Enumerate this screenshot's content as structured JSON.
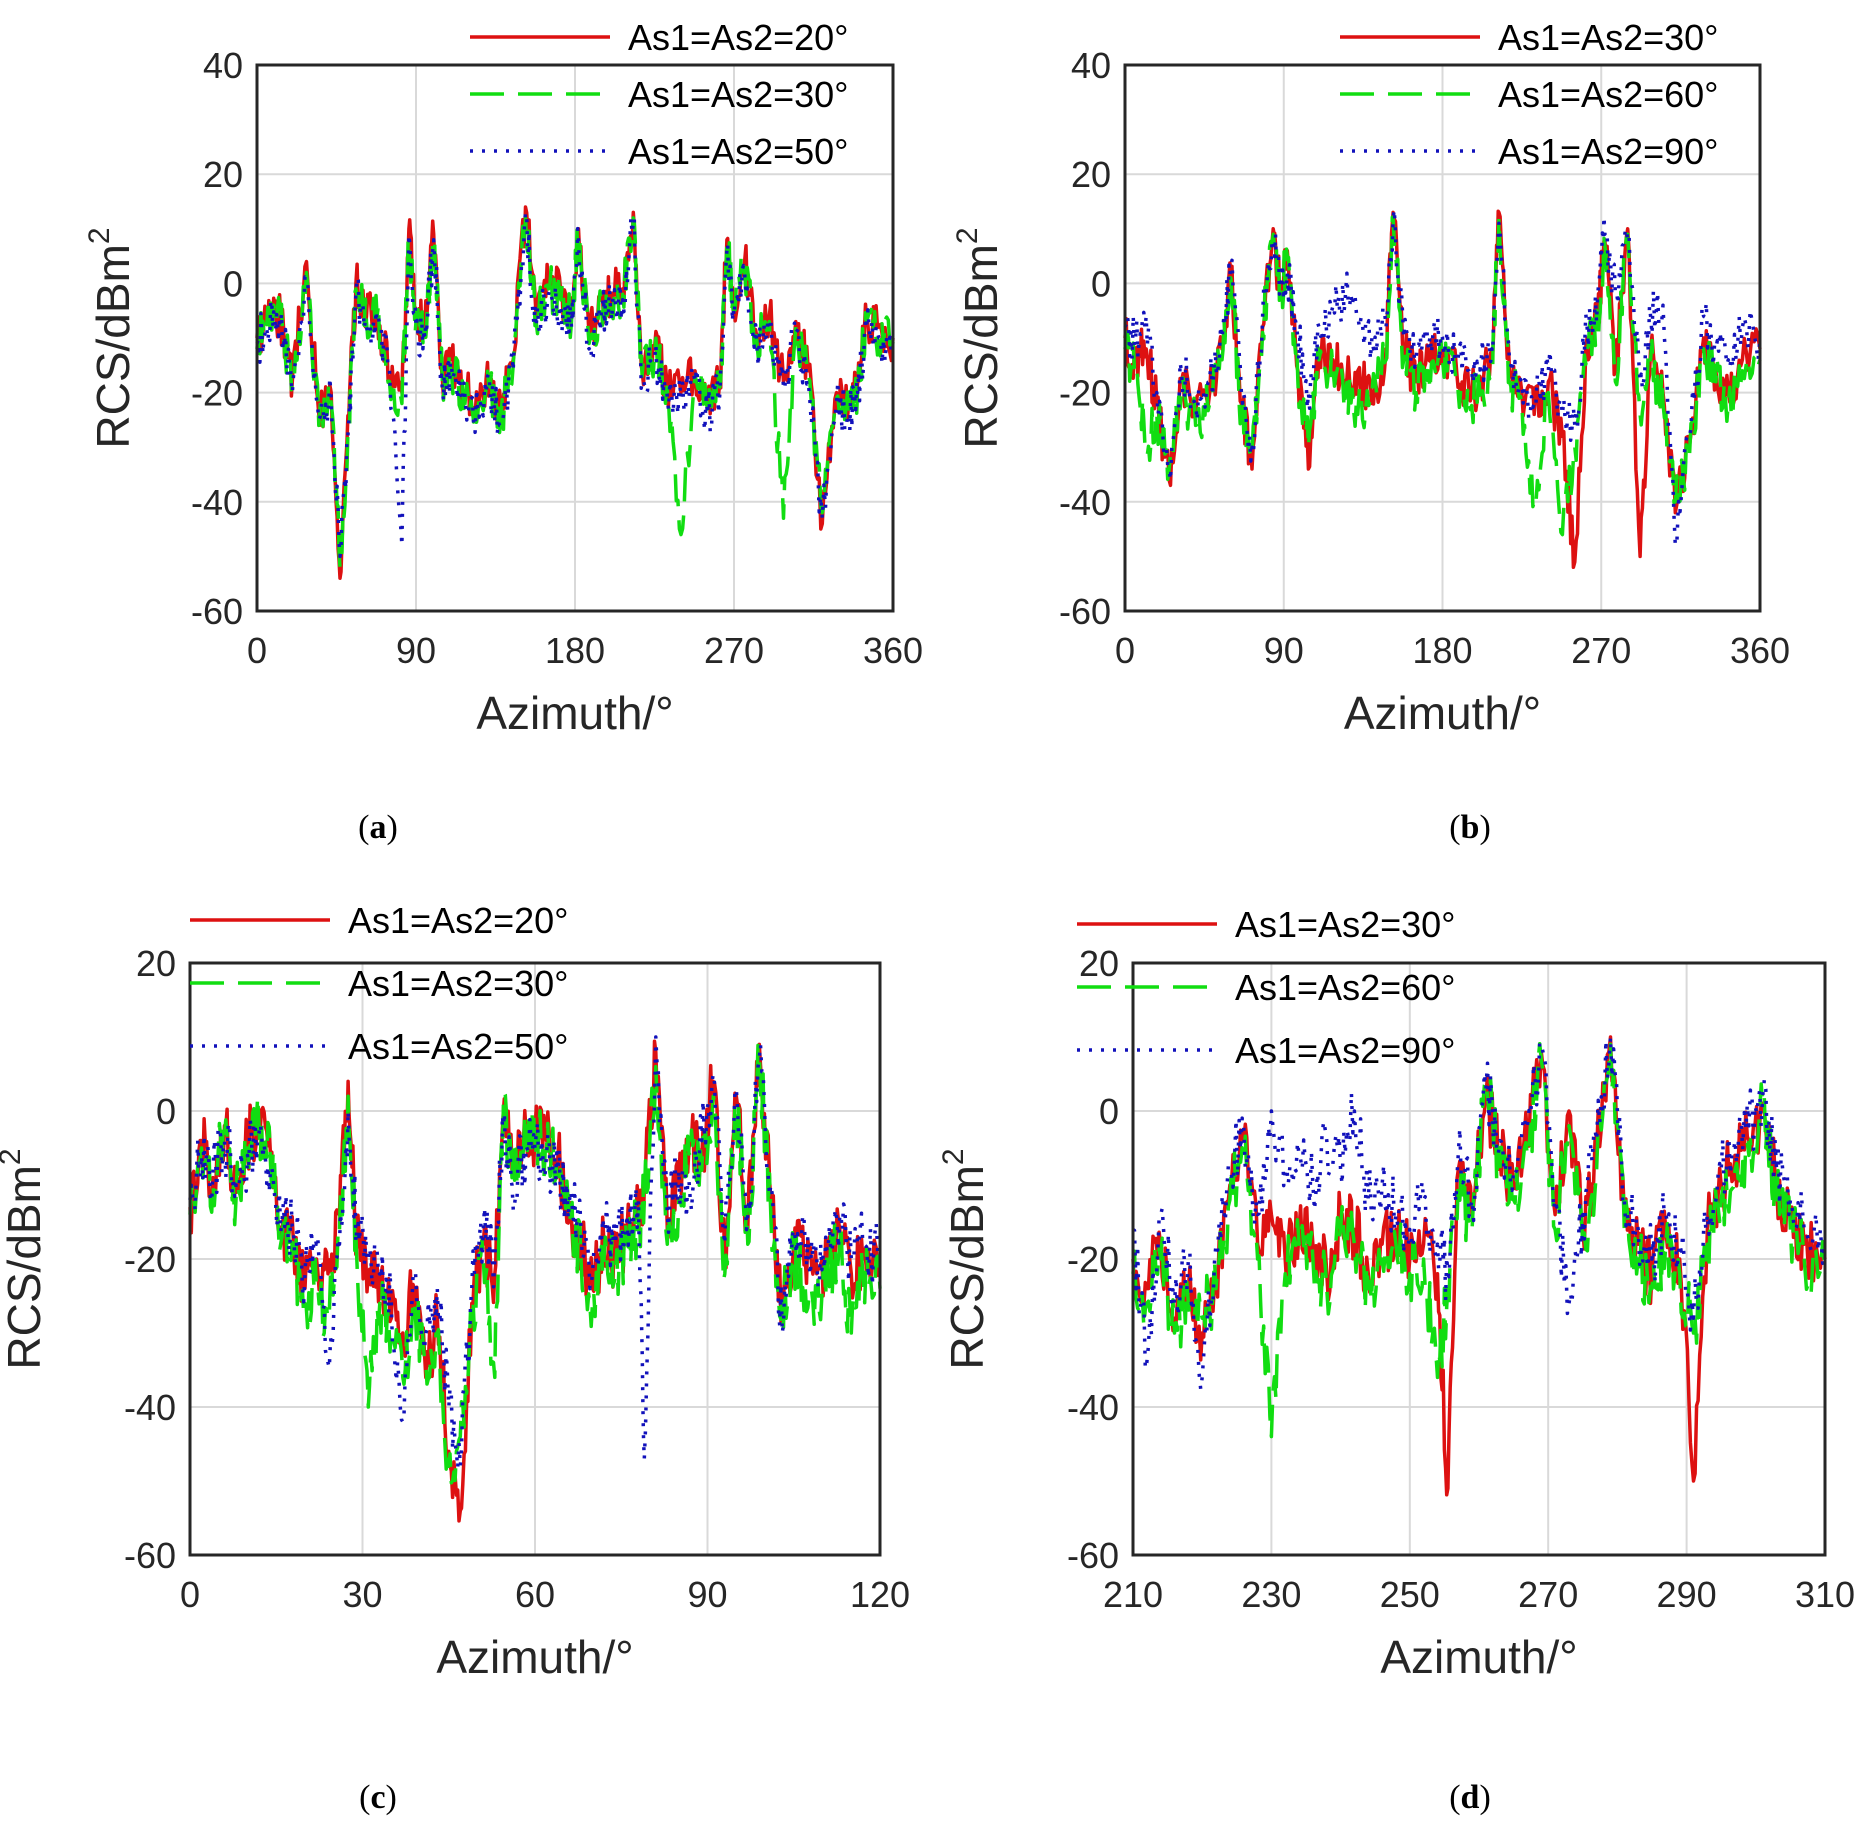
{
  "figure": {
    "panels": [
      {
        "caption_open": "(",
        "caption_letter": "a",
        "caption_close": ")"
      },
      {
        "caption_open": "(",
        "caption_letter": "b",
        "caption_close": ")"
      },
      {
        "caption_open": "(",
        "caption_letter": "c",
        "caption_close": ")"
      },
      {
        "caption_open": "(",
        "caption_letter": "d",
        "caption_close": ")"
      }
    ]
  },
  "chart_data": [
    {
      "type": "line",
      "panel": "a",
      "xlabel": "Azimuth/°",
      "ylabel": "RCS/dBm",
      "ylabel_sup": "2",
      "xlim": [
        0,
        360
      ],
      "ylim": [
        -60,
        40
      ],
      "xticks": [
        0,
        90,
        180,
        270,
        360
      ],
      "yticks": [
        40,
        20,
        0,
        -20,
        -40,
        -60
      ],
      "xtick_labels": [
        "0",
        "90",
        "180",
        "270",
        "360"
      ],
      "ytick_labels": [
        "40",
        "20",
        "0",
        "-20",
        "-40",
        "-60"
      ],
      "grid": true,
      "legend": "top-right",
      "colors": [
        "#dd1111",
        "#11dd11",
        "#1111bb"
      ],
      "series": [
        {
          "name": "As1=As2=20°",
          "style": "solid"
        },
        {
          "name": "As1=As2=30°",
          "style": "dashed"
        },
        {
          "name": "As1=As2=50°",
          "style": "dotted"
        }
      ],
      "x": [
        0,
        5,
        10,
        15,
        20,
        28,
        35,
        42,
        47,
        52,
        56,
        62,
        68,
        75,
        82,
        86,
        90,
        95,
        100,
        105,
        110,
        118,
        125,
        132,
        138,
        145,
        152,
        158,
        165,
        172,
        178,
        182,
        188,
        195,
        200,
        207,
        213,
        218,
        225,
        232,
        240,
        248,
        255,
        262,
        266,
        270,
        276,
        283,
        290,
        298,
        305,
        312,
        320,
        328,
        335,
        340,
        345,
        352,
        360
      ],
      "values": [
        [
          -10,
          -6,
          -4,
          -8,
          -18,
          4,
          -24,
          -20,
          -54,
          -24,
          0,
          -6,
          -5,
          -17,
          -20,
          10,
          -6,
          -8,
          9,
          -18,
          -14,
          -20,
          -22,
          -18,
          -24,
          -14,
          14,
          -6,
          0,
          -2,
          -6,
          10,
          -10,
          -3,
          -2,
          -1,
          13,
          -16,
          -12,
          -18,
          -20,
          -16,
          -22,
          -18,
          8,
          -4,
          4,
          -10,
          -6,
          -18,
          -7,
          -16,
          -44,
          -20,
          -22,
          -18,
          -6,
          -8,
          -10
        ],
        [
          -12,
          -7,
          -5,
          -9,
          -19,
          2,
          -26,
          -22,
          -52,
          -26,
          -1,
          -7,
          -6,
          -18,
          -22,
          8,
          -7,
          -9,
          7,
          -19,
          -16,
          -21,
          -24,
          -19,
          -25,
          -15,
          12,
          -7,
          -1,
          -3,
          -7,
          9,
          -11,
          -4,
          -3,
          -2,
          12,
          -17,
          -13,
          -19,
          -46,
          -17,
          -23,
          -19,
          7,
          -5,
          3,
          -11,
          -7,
          -43,
          -8,
          -17,
          -42,
          -21,
          -23,
          -19,
          -7,
          -9,
          -11
        ],
        [
          -11,
          -8,
          -6,
          -10,
          -20,
          1,
          -25,
          -21,
          -50,
          -25,
          -2,
          -8,
          -7,
          -16,
          -48,
          9,
          -8,
          -10,
          8,
          -20,
          -15,
          -22,
          -23,
          -20,
          -26,
          -16,
          13,
          -8,
          -2,
          -4,
          -8,
          8,
          -12,
          -5,
          -4,
          -3,
          11,
          -18,
          -14,
          -20,
          -21,
          -18,
          -24,
          -20,
          6,
          -6,
          2,
          -12,
          -8,
          -19,
          -9,
          -18,
          -43,
          -22,
          -24,
          -20,
          -8,
          -10,
          -12
        ]
      ]
    },
    {
      "type": "line",
      "panel": "b",
      "xlabel": "Azimuth/°",
      "ylabel": "RCS/dBm",
      "ylabel_sup": "2",
      "xlim": [
        0,
        360
      ],
      "ylim": [
        -60,
        40
      ],
      "xticks": [
        0,
        90,
        180,
        270,
        360
      ],
      "yticks": [
        40,
        20,
        0,
        -20,
        -40,
        -60
      ],
      "xtick_labels": [
        "0",
        "90",
        "180",
        "270",
        "360"
      ],
      "ytick_labels": [
        "40",
        "20",
        "0",
        "-20",
        "-40",
        "-60"
      ],
      "grid": true,
      "legend": "top-right",
      "colors": [
        "#dd1111",
        "#11dd11",
        "#1111bb"
      ],
      "series": [
        {
          "name": "As1=As2=30°",
          "style": "solid"
        },
        {
          "name": "As1=As2=60°",
          "style": "dashed"
        },
        {
          "name": "As1=As2=90°",
          "style": "dotted"
        }
      ],
      "x": [
        0,
        6,
        12,
        18,
        25,
        32,
        40,
        48,
        55,
        60,
        66,
        72,
        78,
        84,
        88,
        92,
        98,
        104,
        110,
        118,
        125,
        132,
        140,
        148,
        152,
        158,
        165,
        172,
        180,
        188,
        195,
        202,
        208,
        212,
        218,
        225,
        232,
        240,
        248,
        255,
        262,
        268,
        272,
        278,
        285,
        292,
        298,
        305,
        312,
        320,
        328,
        335,
        342,
        350,
        360
      ],
      "values": [
        [
          -10,
          -14,
          -12,
          -22,
          -36,
          -18,
          -24,
          -20,
          -12,
          2,
          -22,
          -34,
          -8,
          10,
          -2,
          6,
          -16,
          -34,
          -12,
          -14,
          -18,
          -16,
          -22,
          -12,
          13,
          -12,
          -18,
          -14,
          -12,
          -16,
          -20,
          -18,
          -14,
          13,
          -16,
          -20,
          -24,
          -18,
          -28,
          -51,
          -10,
          -6,
          8,
          -16,
          10,
          -50,
          -12,
          -20,
          -42,
          -30,
          -10,
          -16,
          -20,
          -14,
          -12
        ],
        [
          -12,
          -16,
          -30,
          -24,
          -34,
          -20,
          -26,
          -22,
          -14,
          1,
          -24,
          -32,
          -9,
          9,
          -3,
          5,
          -18,
          -30,
          -14,
          -16,
          -20,
          -24,
          -20,
          -14,
          12,
          -14,
          -20,
          -16,
          -14,
          -18,
          -22,
          -20,
          -16,
          12,
          -18,
          -22,
          -40,
          -20,
          -46,
          -30,
          -12,
          -8,
          7,
          -18,
          9,
          -24,
          -14,
          -22,
          -40,
          -32,
          -12,
          -18,
          -22,
          -16,
          -14
        ],
        [
          -8,
          -10,
          -6,
          -20,
          -34,
          -16,
          -22,
          -18,
          -10,
          3,
          -20,
          -30,
          -6,
          8,
          -1,
          2,
          -10,
          -20,
          -8,
          -4,
          -2,
          -6,
          -10,
          -8,
          12,
          -10,
          -14,
          -12,
          -10,
          -14,
          -16,
          -14,
          -12,
          11,
          -14,
          -18,
          -22,
          -16,
          -24,
          -26,
          -8,
          -2,
          9,
          -2,
          8,
          -18,
          -6,
          -4,
          -48,
          -28,
          -6,
          -12,
          -14,
          -8,
          -10
        ]
      ]
    },
    {
      "type": "line",
      "panel": "c",
      "xlabel": "Azimuth/°",
      "ylabel": "RCS/dBm",
      "ylabel_sup": "2",
      "xlim": [
        0,
        120
      ],
      "ylim": [
        -60,
        20
      ],
      "xticks": [
        0,
        30,
        60,
        90,
        120
      ],
      "yticks": [
        20,
        0,
        -20,
        -40,
        -60
      ],
      "xtick_labels": [
        "0",
        "30",
        "60",
        "90",
        "120"
      ],
      "ytick_labels": [
        "20",
        "0",
        "-20",
        "-40",
        "-60"
      ],
      "grid": true,
      "legend": "top-left",
      "colors": [
        "#dd1111",
        "#11dd11",
        "#1111bb"
      ],
      "series": [
        {
          "name": "As1=As2=20°",
          "style": "solid"
        },
        {
          "name": "As1=As2=30°",
          "style": "dashed"
        },
        {
          "name": "As1=As2=50°",
          "style": "dotted"
        }
      ],
      "x": [
        0,
        2,
        4,
        6,
        8,
        10,
        12,
        14,
        16,
        18,
        20,
        22,
        24,
        26,
        27.5,
        29,
        31,
        33,
        35,
        37,
        39,
        41,
        43,
        45,
        47,
        49,
        51,
        53,
        54.5,
        56,
        58,
        60,
        62,
        64,
        66,
        68,
        70,
        72,
        74,
        76,
        78,
        79,
        81,
        83,
        85,
        87,
        89,
        91,
        93,
        95,
        97,
        99,
        101,
        103,
        105,
        107,
        109,
        111,
        113,
        115,
        117,
        120
      ],
      "values": [
        [
          -13,
          -4,
          -9,
          -2,
          -11,
          -4,
          -1,
          -6,
          -16,
          -18,
          -24,
          -20,
          -22,
          -14,
          4,
          -18,
          -22,
          -24,
          -28,
          -30,
          -24,
          -36,
          -28,
          -46,
          -54,
          -26,
          -18,
          -22,
          0,
          -8,
          -4,
          -3,
          -4,
          -6,
          -14,
          -18,
          -24,
          -18,
          -20,
          -16,
          -14,
          -10,
          8,
          -16,
          -10,
          -4,
          -6,
          4,
          -20,
          2,
          -16,
          9,
          -12,
          -28,
          -18,
          -20,
          -22,
          -20,
          -16,
          -22,
          -20,
          -22
        ],
        [
          -14,
          -5,
          -10,
          -3,
          -12,
          -5,
          -2,
          -7,
          -17,
          -20,
          -26,
          -24,
          -28,
          -16,
          2,
          -20,
          -40,
          -26,
          -30,
          -36,
          -26,
          -34,
          -30,
          -48,
          -44,
          -28,
          -20,
          -36,
          1,
          -9,
          -5,
          -4,
          -5,
          -7,
          -15,
          -20,
          -26,
          -20,
          -22,
          -18,
          -16,
          -12,
          6,
          -18,
          -12,
          -6,
          -8,
          2,
          -22,
          1,
          -18,
          8,
          -14,
          -26,
          -20,
          -24,
          -26,
          -22,
          -18,
          -30,
          -22,
          -24
        ],
        [
          -12,
          -6,
          -8,
          -4,
          -10,
          -6,
          -3,
          -8,
          -15,
          -16,
          -22,
          -18,
          -34,
          -18,
          0,
          -16,
          -20,
          -22,
          -26,
          -42,
          -22,
          -30,
          -24,
          -40,
          -48,
          -24,
          -16,
          -20,
          -2,
          -10,
          -6,
          -5,
          -6,
          -8,
          -12,
          -16,
          -22,
          -16,
          -18,
          -14,
          -12,
          -47,
          10,
          -14,
          -8,
          -12,
          -4,
          5,
          -18,
          3,
          -14,
          7,
          -10,
          -30,
          -16,
          -18,
          -20,
          -18,
          -14,
          -20,
          -18,
          -20
        ]
      ]
    },
    {
      "type": "line",
      "panel": "d",
      "xlabel": "Azimuth/°",
      "ylabel": "RCS/dBm",
      "ylabel_sup": "2",
      "xlim": [
        210,
        310
      ],
      "ylim": [
        -60,
        20
      ],
      "xticks": [
        210,
        230,
        250,
        270,
        290,
        310
      ],
      "yticks": [
        20,
        0,
        -20,
        -40,
        -60
      ],
      "xtick_labels": [
        "210",
        "230",
        "250",
        "270",
        "290",
        "310"
      ],
      "ytick_labels": [
        "20",
        "0",
        "-20",
        "-40",
        "-60"
      ],
      "grid": true,
      "legend": "top-left",
      "colors": [
        "#dd1111",
        "#11dd11",
        "#1111bb"
      ],
      "series": [
        {
          "name": "As1=As2=30°",
          "style": "solid"
        },
        {
          "name": "As1=As2=60°",
          "style": "dashed"
        },
        {
          "name": "As1=As2=90°",
          "style": "dotted"
        }
      ],
      "x": [
        210,
        212,
        214,
        216,
        218,
        220,
        222,
        224,
        226,
        228,
        230,
        232,
        234,
        236,
        238,
        240,
        242,
        244,
        246,
        248,
        250,
        252,
        254,
        255.5,
        257,
        259,
        261,
        263,
        265,
        267,
        269,
        271,
        273,
        275,
        277,
        279,
        281,
        283,
        285,
        287,
        289,
        291,
        293,
        295,
        297,
        299,
        301,
        303,
        305,
        307,
        310
      ],
      "values": [
        [
          -20,
          -24,
          -18,
          -28,
          -24,
          -30,
          -22,
          -10,
          -4,
          -18,
          -14,
          -20,
          -16,
          -18,
          -22,
          -14,
          -16,
          -22,
          -18,
          -16,
          -20,
          -18,
          -22,
          -51,
          -8,
          -14,
          2,
          -6,
          -10,
          -4,
          8,
          -14,
          0,
          -16,
          -6,
          10,
          -14,
          -18,
          -22,
          -16,
          -20,
          -50,
          -16,
          -10,
          -6,
          -4,
          0,
          -10,
          -14,
          -18,
          -20
        ],
        [
          -22,
          -26,
          -20,
          -30,
          -26,
          -28,
          -24,
          -12,
          -6,
          -20,
          -44,
          -22,
          -18,
          -20,
          -24,
          -16,
          -18,
          -24,
          -20,
          -18,
          -22,
          -20,
          -36,
          -24,
          -10,
          -16,
          4,
          -8,
          -12,
          -6,
          7,
          -16,
          -2,
          -18,
          -8,
          9,
          -16,
          -20,
          -24,
          -18,
          -22,
          -30,
          -18,
          -12,
          -8,
          -6,
          1,
          -12,
          -16,
          -20,
          -22
        ],
        [
          -16,
          -34,
          -14,
          -26,
          -20,
          -36,
          -18,
          -8,
          -2,
          -14,
          0,
          -8,
          -6,
          -10,
          -4,
          -8,
          0,
          -12,
          -10,
          -14,
          -16,
          -12,
          -18,
          -22,
          -6,
          -12,
          3,
          -4,
          -8,
          -2,
          9,
          -12,
          -26,
          -14,
          -4,
          10,
          -12,
          -16,
          -20,
          -14,
          -18,
          -28,
          -14,
          -8,
          -4,
          -2,
          2,
          -8,
          -12,
          -16,
          -18
        ]
      ]
    }
  ]
}
